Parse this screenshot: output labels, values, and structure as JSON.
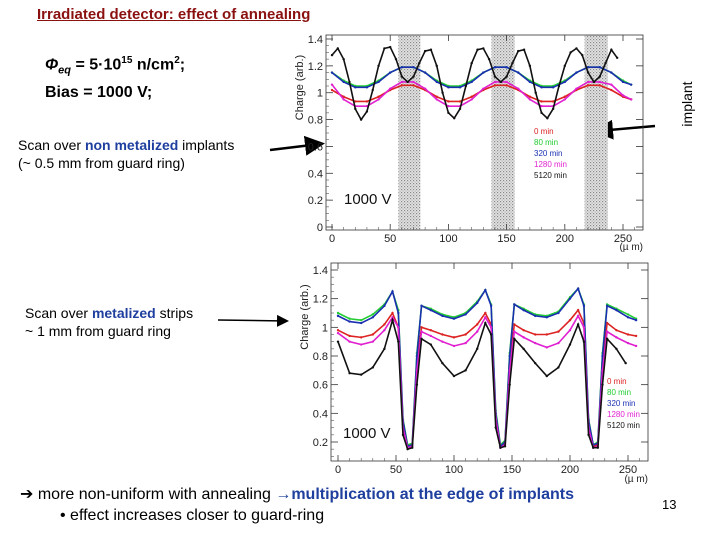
{
  "slide": {
    "title": "Irradiated detector: effect of annealing",
    "phi_symbol": "Φ",
    "phi_sub": "eq",
    "phi_value": " = 5·10",
    "phi_exp": "15",
    "phi_unit": " n/cm",
    "phi_unit_exp": "2",
    "phi_end": ";",
    "bias": "Bias = 1000 V;",
    "scan1_pre": "Scan over ",
    "scan1_bold": "non metalized",
    "scan1_post": " implants",
    "scan1_line2": " (~ 0.5 mm from guard ring)",
    "scan2_pre": "Scan over ",
    "scan2_bold": "metalized",
    "scan2_post": " strips",
    "scan2_line2": "~ 1 mm from guard ring",
    "implant_label": "implant",
    "conclusion_arrow": "➔",
    "conclusion_text": " more non-uniform with annealing ",
    "conclusion_arrow2": "→",
    "conclusion_bold": "multiplication at the edge of implants",
    "bullet": "• effect increases closer to guard-ring",
    "page_number": "13",
    "title_color": "#8b1111",
    "highlight_color": "#1f3f9f"
  },
  "chart_data": [
    {
      "type": "line",
      "ylabel": "Charge (arb.)",
      "xlabel": "(µ m)",
      "xlim": [
        0,
        270
      ],
      "ylim": [
        0,
        1.4
      ],
      "xticks": [
        "0",
        "50",
        "100",
        "150",
        "200",
        "250"
      ],
      "yticks": [
        "0",
        "0.2",
        "0.4",
        "0.6",
        "0.8",
        "1",
        "1.2",
        "1.4"
      ],
      "annotation": "1000 V",
      "legend_placement": "center-right",
      "implant_regions": [
        [
          57,
          76
        ],
        [
          137,
          157
        ],
        [
          217,
          237
        ]
      ],
      "series": [
        {
          "name": "0 min",
          "color": "#dd2222",
          "x": [
            0,
            10,
            20,
            30,
            40,
            50,
            60,
            70,
            80,
            90,
            100,
            110,
            120,
            130,
            140,
            150,
            160,
            170,
            180,
            190,
            200,
            210,
            220,
            230,
            240,
            250,
            257
          ],
          "y": [
            1.02,
            0.97,
            0.935,
            0.935,
            0.97,
            1.02,
            1.055,
            1.055,
            1.02,
            0.97,
            0.935,
            0.935,
            0.97,
            1.02,
            1.055,
            1.055,
            1.02,
            0.97,
            0.935,
            0.935,
            0.97,
            1.02,
            1.055,
            1.055,
            1.02,
            0.97,
            0.95
          ]
        },
        {
          "name": "80 min",
          "color": "#22cc33",
          "x": [
            0,
            10,
            20,
            30,
            40,
            50,
            60,
            70,
            80,
            90,
            100,
            110,
            120,
            130,
            140,
            150,
            160,
            170,
            180,
            190,
            200,
            210,
            220,
            230,
            240,
            250,
            257
          ],
          "y": [
            1.15,
            1.09,
            1.05,
            1.05,
            1.09,
            1.15,
            1.19,
            1.19,
            1.15,
            1.09,
            1.05,
            1.05,
            1.09,
            1.15,
            1.19,
            1.19,
            1.15,
            1.09,
            1.05,
            1.05,
            1.09,
            1.15,
            1.19,
            1.19,
            1.15,
            1.09,
            1.06
          ]
        },
        {
          "name": "320 min",
          "color": "#1a2fb0",
          "x": [
            0,
            10,
            20,
            30,
            40,
            50,
            60,
            70,
            80,
            90,
            100,
            110,
            120,
            130,
            140,
            150,
            160,
            170,
            180,
            190,
            200,
            210,
            220,
            230,
            240,
            250,
            257
          ],
          "y": [
            1.15,
            1.08,
            1.04,
            1.04,
            1.08,
            1.15,
            1.19,
            1.19,
            1.15,
            1.08,
            1.04,
            1.04,
            1.08,
            1.15,
            1.19,
            1.19,
            1.15,
            1.08,
            1.04,
            1.04,
            1.08,
            1.15,
            1.19,
            1.19,
            1.15,
            1.08,
            1.06
          ]
        },
        {
          "name": "1280 min",
          "color": "#e020d0",
          "x": [
            0,
            10,
            20,
            30,
            40,
            50,
            60,
            70,
            80,
            90,
            100,
            110,
            120,
            130,
            140,
            150,
            160,
            170,
            180,
            190,
            200,
            210,
            220,
            230,
            240,
            250,
            257
          ],
          "y": [
            1.06,
            0.95,
            0.9,
            0.9,
            0.95,
            1.03,
            1.08,
            1.08,
            1.03,
            0.95,
            0.9,
            0.9,
            0.95,
            1.03,
            1.08,
            1.08,
            1.03,
            0.95,
            0.9,
            0.9,
            0.95,
            1.03,
            1.08,
            1.08,
            1.06,
            0.98,
            0.95
          ]
        },
        {
          "name": "5120 min",
          "color": "#111111",
          "x": [
            0,
            5,
            10,
            15,
            20,
            25,
            30,
            35,
            40,
            45,
            50,
            55,
            60,
            65,
            70,
            75,
            80,
            85,
            90,
            95,
            100,
            105,
            110,
            115,
            120,
            125,
            130,
            135,
            140,
            145,
            150,
            155,
            160,
            165,
            170,
            175,
            180,
            185,
            190,
            195,
            200,
            205,
            210,
            215,
            220,
            225,
            230,
            235,
            240,
            245
          ],
          "y": [
            1.28,
            1.33,
            1.25,
            1.08,
            0.88,
            0.8,
            0.86,
            1.02,
            1.2,
            1.33,
            1.34,
            1.25,
            1.12,
            1.08,
            1.12,
            1.22,
            1.31,
            1.32,
            1.2,
            1.0,
            0.85,
            0.81,
            0.88,
            1.05,
            1.22,
            1.32,
            1.33,
            1.25,
            1.12,
            1.08,
            1.12,
            1.22,
            1.31,
            1.32,
            1.2,
            1.0,
            0.85,
            0.81,
            0.88,
            1.05,
            1.2,
            1.3,
            1.33,
            1.28,
            1.15,
            1.08,
            1.12,
            1.22,
            1.32,
            1.26
          ]
        }
      ]
    },
    {
      "type": "line",
      "ylabel": "Charge (arb.)",
      "xlabel": "(µ m)",
      "xlim": [
        0,
        270
      ],
      "ylim": [
        0.06,
        1.4
      ],
      "xticks": [
        "0",
        "50",
        "100",
        "150",
        "200",
        "250"
      ],
      "yticks": [
        "0.2",
        "0.4",
        "0.6",
        "0.8",
        "1",
        "1.2",
        "1.4"
      ],
      "annotation": "1000 V",
      "legend_placement": "bottom-right",
      "series": [
        {
          "name": "0 min",
          "color": "#dd2222",
          "x": [
            0,
            10,
            20,
            30,
            40,
            47,
            52,
            56,
            60,
            64,
            68,
            72,
            80,
            90,
            100,
            110,
            120,
            127,
            132,
            136,
            140,
            144,
            148,
            152,
            160,
            170,
            180,
            190,
            200,
            207,
            212,
            216,
            220,
            224,
            228,
            232,
            240,
            250,
            257
          ],
          "y": [
            0.98,
            0.94,
            0.93,
            0.95,
            1.02,
            1.1,
            1.0,
            0.32,
            0.16,
            0.17,
            0.75,
            1.0,
            0.98,
            0.95,
            0.93,
            0.95,
            1.02,
            1.1,
            1.02,
            0.38,
            0.17,
            0.19,
            0.75,
            1.02,
            0.98,
            0.95,
            0.95,
            0.97,
            1.05,
            1.12,
            1.03,
            0.33,
            0.17,
            0.18,
            0.75,
            1.03,
            0.98,
            0.95,
            0.94
          ]
        },
        {
          "name": "80 min",
          "color": "#22cc33",
          "x": [
            0,
            10,
            20,
            30,
            40,
            47,
            52,
            56,
            60,
            64,
            68,
            72,
            80,
            90,
            100,
            110,
            120,
            127,
            132,
            136,
            140,
            144,
            148,
            152,
            160,
            170,
            180,
            190,
            200,
            207,
            212,
            216,
            220,
            224,
            228,
            232,
            240,
            250,
            257
          ],
          "y": [
            1.1,
            1.06,
            1.05,
            1.09,
            1.16,
            1.25,
            1.12,
            0.36,
            0.18,
            0.19,
            0.82,
            1.15,
            1.13,
            1.09,
            1.07,
            1.1,
            1.18,
            1.26,
            1.16,
            0.42,
            0.18,
            0.21,
            0.82,
            1.16,
            1.13,
            1.09,
            1.08,
            1.11,
            1.21,
            1.27,
            1.16,
            0.36,
            0.18,
            0.2,
            0.82,
            1.16,
            1.13,
            1.09,
            1.06
          ]
        },
        {
          "name": "320 min",
          "color": "#1a2fb0",
          "x": [
            0,
            10,
            20,
            30,
            40,
            47,
            52,
            56,
            60,
            64,
            68,
            72,
            80,
            90,
            100,
            110,
            120,
            127,
            132,
            136,
            140,
            144,
            148,
            152,
            160,
            170,
            180,
            190,
            200,
            207,
            212,
            216,
            220,
            224,
            228,
            232,
            240,
            250,
            257
          ],
          "y": [
            1.08,
            1.04,
            1.03,
            1.07,
            1.15,
            1.25,
            1.1,
            0.35,
            0.17,
            0.18,
            0.8,
            1.15,
            1.12,
            1.08,
            1.06,
            1.09,
            1.17,
            1.26,
            1.15,
            0.4,
            0.17,
            0.2,
            0.8,
            1.16,
            1.12,
            1.08,
            1.07,
            1.1,
            1.2,
            1.27,
            1.15,
            0.35,
            0.18,
            0.19,
            0.8,
            1.15,
            1.12,
            1.07,
            1.05
          ]
        },
        {
          "name": "1280 min",
          "color": "#e020d0",
          "x": [
            0,
            10,
            20,
            30,
            40,
            47,
            52,
            56,
            60,
            64,
            68,
            72,
            80,
            90,
            100,
            110,
            120,
            127,
            132,
            136,
            140,
            144,
            148,
            152,
            160,
            170,
            180,
            190,
            200,
            207,
            212,
            216,
            220,
            224,
            228,
            232,
            240,
            250,
            257
          ],
          "y": [
            0.96,
            0.9,
            0.88,
            0.9,
            0.98,
            1.07,
            1.0,
            0.3,
            0.16,
            0.17,
            0.7,
            0.97,
            0.94,
            0.9,
            0.87,
            0.89,
            0.97,
            1.07,
            1.0,
            0.36,
            0.16,
            0.18,
            0.7,
            0.97,
            0.93,
            0.89,
            0.86,
            0.89,
            0.98,
            1.08,
            1.0,
            0.3,
            0.16,
            0.17,
            0.7,
            0.97,
            0.93,
            0.89,
            0.87
          ]
        },
        {
          "name": "5120 min",
          "color": "#111111",
          "x": [
            0,
            10,
            20,
            30,
            40,
            47,
            52,
            56,
            60,
            64,
            68,
            72,
            80,
            90,
            100,
            110,
            120,
            127,
            132,
            136,
            140,
            144,
            148,
            152,
            160,
            170,
            180,
            190,
            200,
            207,
            212,
            216,
            220,
            224,
            228,
            232,
            240,
            248
          ],
          "y": [
            0.9,
            0.68,
            0.67,
            0.72,
            0.85,
            1.05,
            0.9,
            0.25,
            0.15,
            0.16,
            0.6,
            0.92,
            0.88,
            0.75,
            0.66,
            0.7,
            0.85,
            1.03,
            0.95,
            0.3,
            0.16,
            0.17,
            0.6,
            0.92,
            0.85,
            0.75,
            0.66,
            0.72,
            0.88,
            1.02,
            0.9,
            0.25,
            0.16,
            0.16,
            0.6,
            0.92,
            0.85,
            0.75
          ]
        }
      ]
    }
  ]
}
